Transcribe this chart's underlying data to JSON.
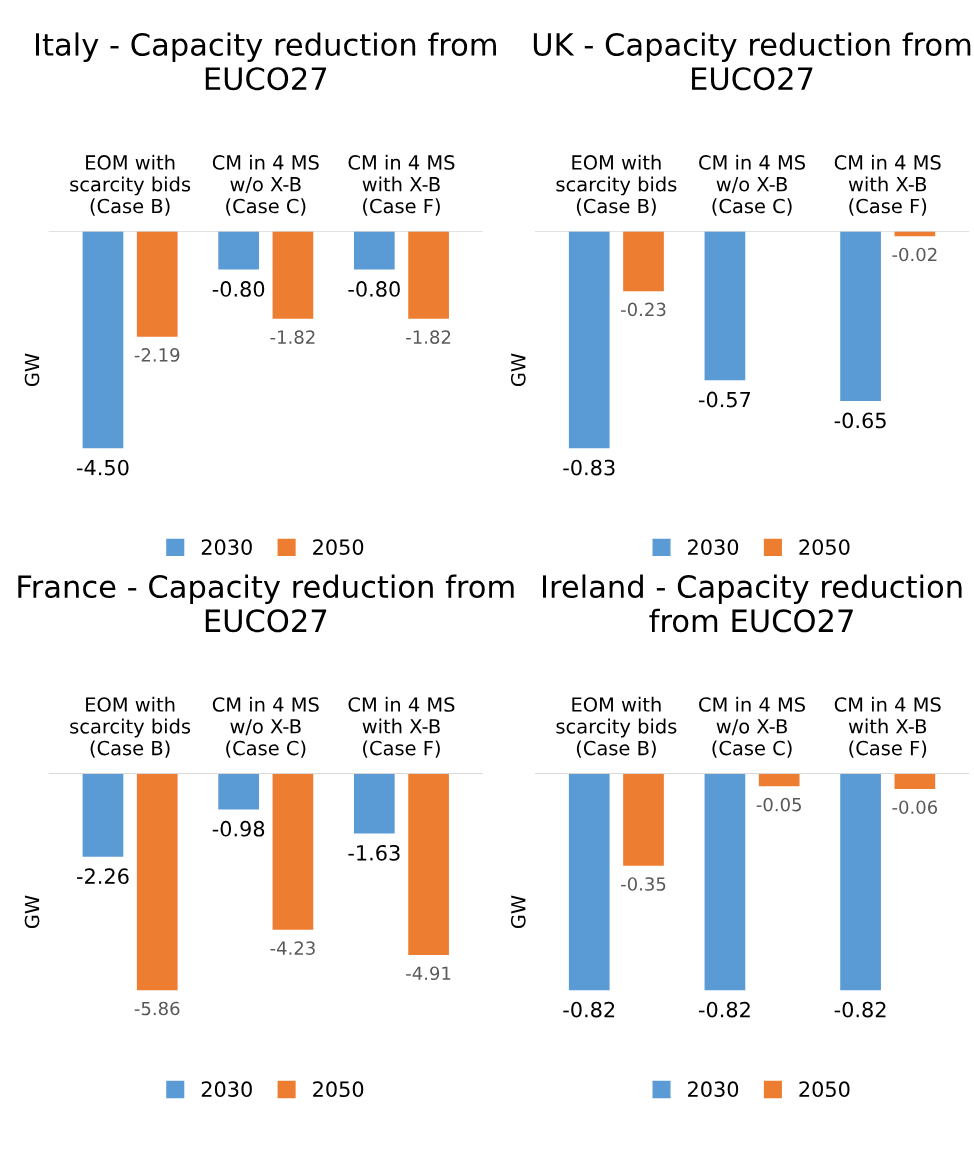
{
  "chart_data": [
    {
      "type": "bar",
      "title": "Italy - Capacity reduction from EUCO27",
      "ylabel": "GW",
      "categories": [
        "EOM with\nscarcity bids\n(Case B)",
        "CM in 4 MS\nw/o X-B\n(Case C)",
        "CM in 4 MS\nwith X-B\n(Case F)"
      ],
      "legend": "bottom",
      "grid": false,
      "series": [
        {
          "name": "2030",
          "color": "#5b9bd5",
          "values": [
            -4.5,
            -0.8,
            -0.8
          ],
          "value_labels": [
            "-4.50",
            "-0.80",
            "-0.80"
          ]
        },
        {
          "name": "2050",
          "color": "#ed7d31",
          "values": [
            -2.19,
            -1.82,
            -1.82
          ],
          "value_labels": [
            "-2.19",
            "-1.82",
            "-1.82"
          ]
        }
      ]
    },
    {
      "type": "bar",
      "title": "UK - Capacity reduction from EUCO27",
      "ylabel": "GW",
      "categories": [
        "EOM with\nscarcity bids\n(Case B)",
        "CM in 4 MS\nw/o X-B\n(Case C)",
        "CM in 4 MS\nwith X-B\n(Case F)"
      ],
      "legend": "bottom",
      "grid": false,
      "series": [
        {
          "name": "2030",
          "color": "#5b9bd5",
          "values": [
            -0.83,
            -0.57,
            -0.65
          ],
          "value_labels": [
            "-0.83",
            "-0.57",
            "-0.65"
          ]
        },
        {
          "name": "2050",
          "color": "#ed7d31",
          "values": [
            -0.23,
            null,
            -0.02
          ],
          "value_labels": [
            "-0.23",
            null,
            "-0.02"
          ]
        }
      ]
    },
    {
      "type": "bar",
      "title": "France - Capacity reduction from EUCO27",
      "ylabel": "GW",
      "categories": [
        "EOM with\nscarcity bids\n(Case B)",
        "CM in 4 MS\nw/o X-B\n(Case C)",
        "CM in 4 MS\nwith X-B\n(Case F)"
      ],
      "legend": "bottom",
      "grid": false,
      "series": [
        {
          "name": "2030",
          "color": "#5b9bd5",
          "values": [
            -2.26,
            -0.98,
            -1.63
          ],
          "value_labels": [
            "-2.26",
            "-0.98",
            "-1.63"
          ]
        },
        {
          "name": "2050",
          "color": "#ed7d31",
          "values": [
            -5.86,
            -4.23,
            -4.91
          ],
          "value_labels": [
            "-5.86",
            "-4.23",
            "-4.91"
          ]
        }
      ]
    },
    {
      "type": "bar",
      "title": "Ireland - Capacity reduction from EUCO27",
      "ylabel": "GW",
      "categories": [
        "EOM with\nscarcity bids\n(Case B)",
        "CM in 4 MS\nw/o X-B\n(Case C)",
        "CM in 4 MS\nwith X-B\n(Case F)"
      ],
      "legend": "bottom",
      "grid": false,
      "series": [
        {
          "name": "2030",
          "color": "#5b9bd5",
          "values": [
            -0.82,
            -0.82,
            -0.82
          ],
          "value_labels": [
            "-0.82",
            "-0.82",
            "-0.82"
          ]
        },
        {
          "name": "2050",
          "color": "#ed7d31",
          "values": [
            -0.35,
            -0.05,
            -0.06
          ],
          "value_labels": [
            "-0.35",
            "-0.05",
            "-0.06"
          ]
        }
      ]
    }
  ]
}
